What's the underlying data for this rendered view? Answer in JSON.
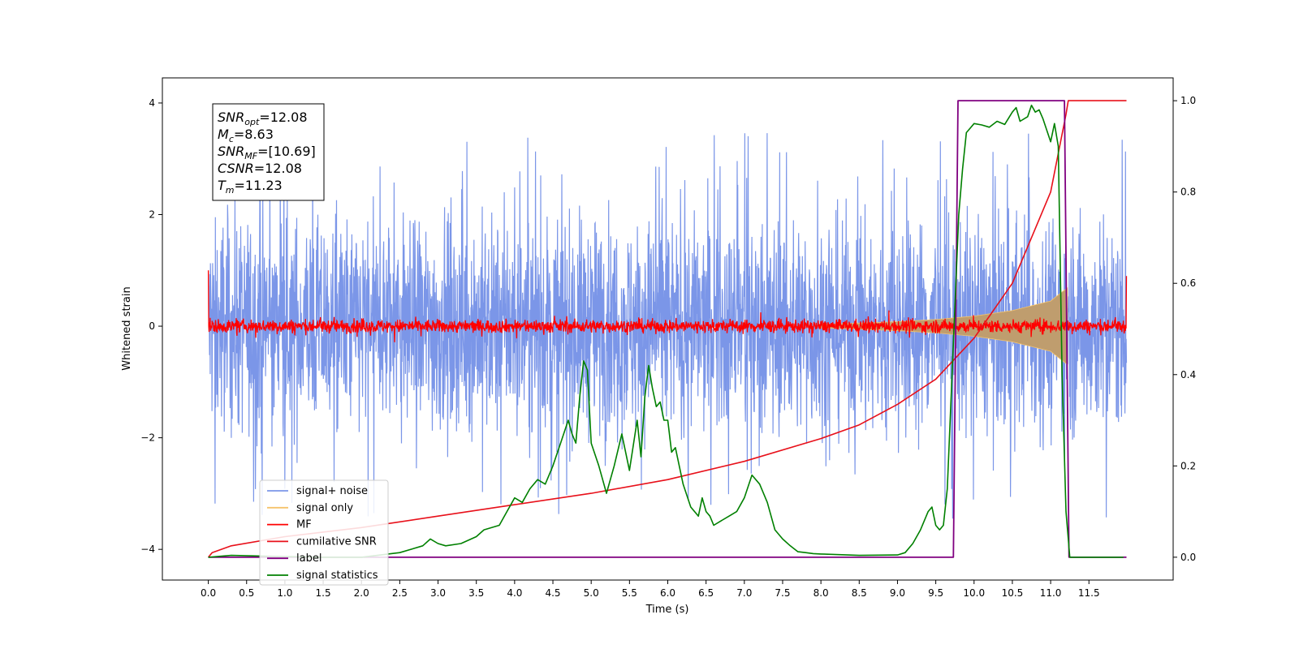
{
  "chart_data": {
    "type": "line",
    "xlabel": "Time (s)",
    "ylabel": "Whitened strain",
    "xlim": [
      -0.6,
      12.6
    ],
    "ylim": [
      -4.55,
      4.45
    ],
    "y2lim": [
      -0.05,
      1.05
    ],
    "xticks": [
      "0.0",
      "0.5",
      "1.0",
      "1.5",
      "2.0",
      "2.5",
      "3.0",
      "3.5",
      "4.0",
      "4.5",
      "5.0",
      "5.5",
      "6.0",
      "6.5",
      "7.0",
      "7.5",
      "8.0",
      "8.5",
      "9.0",
      "9.5",
      "10.0",
      "10.5",
      "11.0",
      "11.5"
    ],
    "yticks": [
      "4",
      "2",
      "0",
      "−2",
      "−4"
    ],
    "y2ticks": [
      "1.0",
      "0.8",
      "0.6",
      "0.4",
      "0.2",
      "0.0"
    ],
    "legend_position": "lower-left",
    "annotation": {
      "lines": [
        {
          "main": "SNR",
          "sub": "opt",
          "rest": "=12.08"
        },
        {
          "main": "M",
          "sub": "c",
          "rest": "=8.63"
        },
        {
          "main": "SNR",
          "sub": "MF",
          "rest": "=[10.69]"
        },
        {
          "main": "CSNR",
          "sub": "",
          "rest": "=12.08"
        },
        {
          "main": "T",
          "sub": "m",
          "rest": "=11.23"
        }
      ]
    },
    "series": [
      {
        "name": "signal+ noise",
        "color": "#7b96e8",
        "axis": "left",
        "description_range": [
          -4.1,
          4.0
        ]
      },
      {
        "name": "signal only",
        "color": "#f5c36b",
        "axis": "left",
        "envelope": {
          "x": [
            8.0,
            9.0,
            9.5,
            10.0,
            10.5,
            11.0,
            11.23
          ],
          "y": [
            0.03,
            0.08,
            0.12,
            0.18,
            0.28,
            0.45,
            0.7
          ]
        }
      },
      {
        "name": "MF",
        "color": "#ff0000",
        "axis": "left",
        "noise_amplitude": 0.12,
        "edges": {
          "x0": 0.0,
          "y0": 1.0,
          "x1": 11.99,
          "y1": 0.9
        }
      },
      {
        "name": "cumilative SNR",
        "color": "#e8101a",
        "axis": "right",
        "x": [
          0.0,
          0.05,
          0.3,
          1.0,
          2.0,
          3.0,
          4.0,
          5.0,
          6.0,
          7.0,
          8.0,
          8.5,
          9.0,
          9.5,
          10.0,
          10.5,
          11.0,
          11.2,
          11.23,
          11.99
        ],
        "y": [
          0.0,
          0.01,
          0.025,
          0.045,
          0.065,
          0.09,
          0.115,
          0.14,
          0.17,
          0.21,
          0.26,
          0.29,
          0.335,
          0.39,
          0.48,
          0.6,
          0.8,
          0.97,
          1.0,
          1.0
        ]
      },
      {
        "name": "label",
        "color": "#800080",
        "axis": "right",
        "x": [
          0.0,
          9.73,
          9.79,
          11.18,
          11.24,
          11.99
        ],
        "y": [
          0.0,
          0.0,
          1.0,
          1.0,
          0.0,
          0.0
        ]
      },
      {
        "name": "signal statistics",
        "color": "#008000",
        "axis": "right",
        "x": [
          0.0,
          0.3,
          0.8,
          1.5,
          2.0,
          2.5,
          2.8,
          2.9,
          3.0,
          3.1,
          3.3,
          3.5,
          3.6,
          3.8,
          3.9,
          4.0,
          4.1,
          4.2,
          4.3,
          4.4,
          4.45,
          4.5,
          4.6,
          4.7,
          4.75,
          4.8,
          4.85,
          4.9,
          4.95,
          5.0,
          5.1,
          5.2,
          5.3,
          5.4,
          5.5,
          5.6,
          5.65,
          5.7,
          5.75,
          5.8,
          5.85,
          5.9,
          5.95,
          6.0,
          6.05,
          6.1,
          6.2,
          6.3,
          6.4,
          6.45,
          6.5,
          6.55,
          6.6,
          6.7,
          6.8,
          6.9,
          7.0,
          7.1,
          7.2,
          7.3,
          7.4,
          7.5,
          7.6,
          7.7,
          7.8,
          7.9,
          8.0,
          8.5,
          9.0,
          9.1,
          9.2,
          9.3,
          9.35,
          9.4,
          9.45,
          9.5,
          9.55,
          9.6,
          9.65,
          9.7,
          9.8,
          9.85,
          9.9,
          9.95,
          10.0,
          10.1,
          10.2,
          10.3,
          10.4,
          10.5,
          10.55,
          10.6,
          10.7,
          10.75,
          10.8,
          10.85,
          10.9,
          11.0,
          11.05,
          11.1,
          11.15,
          11.2,
          11.25,
          11.3,
          11.5,
          11.95
        ],
        "y": [
          0.0,
          0.004,
          0.002,
          0.0,
          0.0,
          0.01,
          0.025,
          0.04,
          0.03,
          0.025,
          0.03,
          0.045,
          0.06,
          0.07,
          0.1,
          0.13,
          0.12,
          0.15,
          0.17,
          0.16,
          0.18,
          0.2,
          0.25,
          0.3,
          0.27,
          0.25,
          0.35,
          0.43,
          0.41,
          0.25,
          0.2,
          0.14,
          0.2,
          0.27,
          0.19,
          0.3,
          0.22,
          0.35,
          0.42,
          0.37,
          0.33,
          0.34,
          0.3,
          0.3,
          0.23,
          0.24,
          0.16,
          0.11,
          0.09,
          0.13,
          0.1,
          0.09,
          0.07,
          0.08,
          0.09,
          0.1,
          0.13,
          0.18,
          0.16,
          0.12,
          0.06,
          0.04,
          0.025,
          0.012,
          0.01,
          0.008,
          0.007,
          0.004,
          0.005,
          0.01,
          0.03,
          0.06,
          0.08,
          0.1,
          0.11,
          0.07,
          0.06,
          0.07,
          0.15,
          0.35,
          0.75,
          0.85,
          0.93,
          0.94,
          0.95,
          0.947,
          0.942,
          0.955,
          0.948,
          0.975,
          0.985,
          0.955,
          0.965,
          0.99,
          0.975,
          0.98,
          0.96,
          0.91,
          0.95,
          0.9,
          0.4,
          0.1,
          0.0,
          0.0,
          0.0,
          0.0
        ]
      }
    ]
  }
}
